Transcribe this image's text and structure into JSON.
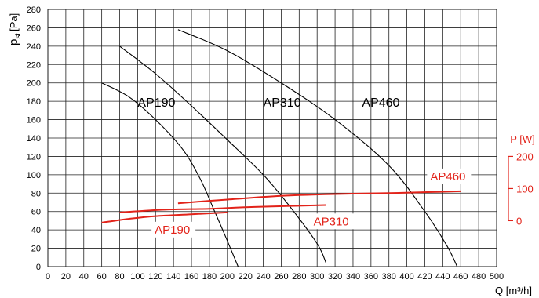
{
  "chart_data": {
    "type": "line",
    "xlabel": "Q [m³/h]",
    "ylabel": "pst [Pa]",
    "ylabel_main": "p",
    "ylabel_sub": "st",
    "ylabel_unit": "[Pa]",
    "xlim": [
      0,
      500
    ],
    "ylim": [
      0,
      280
    ],
    "x_ticks": [
      0,
      20,
      40,
      60,
      80,
      100,
      120,
      140,
      160,
      180,
      200,
      220,
      240,
      260,
      280,
      300,
      320,
      340,
      360,
      380,
      400,
      420,
      440,
      460,
      480,
      500
    ],
    "x_tick_labels": [
      "0",
      "20",
      "40",
      "60",
      "80",
      "100",
      "120",
      "140",
      "160",
      "180",
      "200",
      "220",
      "240",
      "260",
      "280",
      "300",
      "320",
      "340",
      "360",
      "380",
      "400",
      "420",
      "440",
      "460",
      "480",
      "500"
    ],
    "y_ticks": [
      0,
      20,
      40,
      60,
      80,
      100,
      120,
      140,
      160,
      180,
      200,
      220,
      240,
      260,
      280
    ],
    "y_tick_labels": [
      "0",
      "20",
      "40",
      "60",
      "80",
      "100",
      "120",
      "140",
      "160",
      "180",
      "200",
      "220",
      "240",
      "260",
      "280"
    ],
    "grid": true,
    "pressure_series": [
      {
        "name": "AP190",
        "label_pos": [
          100,
          170
        ],
        "points": [
          [
            60,
            200
          ],
          [
            90,
            185
          ],
          [
            120,
            160
          ],
          [
            150,
            128
          ],
          [
            170,
            95
          ],
          [
            185,
            62
          ],
          [
            200,
            28
          ],
          [
            212,
            0
          ]
        ]
      },
      {
        "name": "AP310",
        "label_pos": [
          240,
          170
        ],
        "points": [
          [
            80,
            240
          ],
          [
            120,
            210
          ],
          [
            160,
            175
          ],
          [
            200,
            138
          ],
          [
            240,
            100
          ],
          [
            270,
            65
          ],
          [
            300,
            25
          ],
          [
            310,
            4
          ]
        ]
      },
      {
        "name": "AP460",
        "label_pos": [
          350,
          170
        ],
        "points": [
          [
            145,
            258
          ],
          [
            200,
            235
          ],
          [
            260,
            200
          ],
          [
            320,
            160
          ],
          [
            380,
            110
          ],
          [
            420,
            60
          ],
          [
            445,
            22
          ],
          [
            456,
            0
          ]
        ]
      }
    ],
    "power_axis": {
      "label": "P [W]",
      "ticks": [
        0,
        100,
        200
      ],
      "tick_labels": [
        "0",
        "100",
        "200"
      ],
      "color": "#e2231a"
    },
    "power_series": [
      {
        "name": "AP190",
        "label_pos": [
          119,
          36
        ],
        "points": [
          [
            60,
            48
          ],
          [
            90,
            52
          ],
          [
            120,
            55
          ],
          [
            160,
            57
          ],
          [
            200,
            59
          ]
        ]
      },
      {
        "name": "AP310",
        "label_pos": [
          296,
          45
        ],
        "points": [
          [
            80,
            59
          ],
          [
            130,
            62
          ],
          [
            180,
            63
          ],
          [
            230,
            65
          ],
          [
            310,
            67
          ]
        ]
      },
      {
        "name": "AP460",
        "label_pos": [
          426,
          94
        ],
        "points": [
          [
            145,
            69
          ],
          [
            200,
            73
          ],
          [
            260,
            77
          ],
          [
            320,
            79
          ],
          [
            380,
            80
          ],
          [
            460,
            82
          ]
        ]
      }
    ]
  }
}
